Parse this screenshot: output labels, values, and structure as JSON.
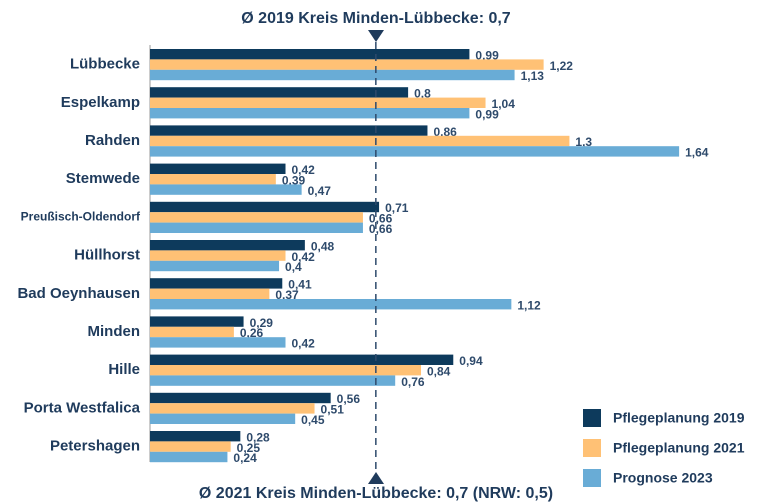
{
  "chart_data": {
    "type": "bar",
    "orientation": "horizontal",
    "annotations": [
      "Ø 2019 Kreis Minden-Lübbecke: 0,7",
      "Ø 2021 Kreis Minden-Lübbecke: 0,7 (NRW: 0,5)"
    ],
    "reference_line": {
      "value": 0.7
    },
    "categories": [
      "Lübbecke",
      "Espelkamp",
      "Rahden",
      "Stemwede",
      "Preußisch-Oldendorf",
      "Hüllhorst",
      "Bad Oeynhausen",
      "Minden",
      "Hille",
      "Porta Westfalica",
      "Petershagen"
    ],
    "series": [
      {
        "name": "Pflegeplanung 2019",
        "color": "#0d3a5c",
        "values": [
          0.99,
          0.8,
          0.86,
          0.42,
          0.71,
          0.48,
          0.41,
          0.29,
          0.94,
          0.56,
          0.28
        ],
        "value_labels": [
          "0,99",
          "0,8",
          "0,86",
          "0,42",
          "0,71",
          "0,48",
          "0,41",
          "0,29",
          "0,94",
          "0,56",
          "0,28"
        ]
      },
      {
        "name": "Pflegeplanung 2021",
        "color": "#ffc175",
        "values": [
          1.22,
          1.04,
          1.3,
          0.39,
          0.66,
          0.42,
          0.37,
          0.26,
          0.84,
          0.51,
          0.25
        ],
        "value_labels": [
          "1,22",
          "1,04",
          "1,3",
          "0,39",
          "0,66",
          "0,42",
          "0,37",
          "0,26",
          "0,84",
          "0,51",
          "0,25"
        ]
      },
      {
        "name": "Prognose 2023",
        "color": "#69acd6",
        "values": [
          1.13,
          0.99,
          1.64,
          0.47,
          0.66,
          0.4,
          1.12,
          0.42,
          0.76,
          0.45,
          0.24
        ],
        "value_labels": [
          "1,13",
          "0,99",
          "1,64",
          "0,47",
          "0,66",
          "0,4",
          "1,12",
          "0,42",
          "0,76",
          "0,45",
          "0,24"
        ]
      }
    ],
    "xlim": [
      0,
      1.9
    ],
    "legend": "lower right"
  }
}
